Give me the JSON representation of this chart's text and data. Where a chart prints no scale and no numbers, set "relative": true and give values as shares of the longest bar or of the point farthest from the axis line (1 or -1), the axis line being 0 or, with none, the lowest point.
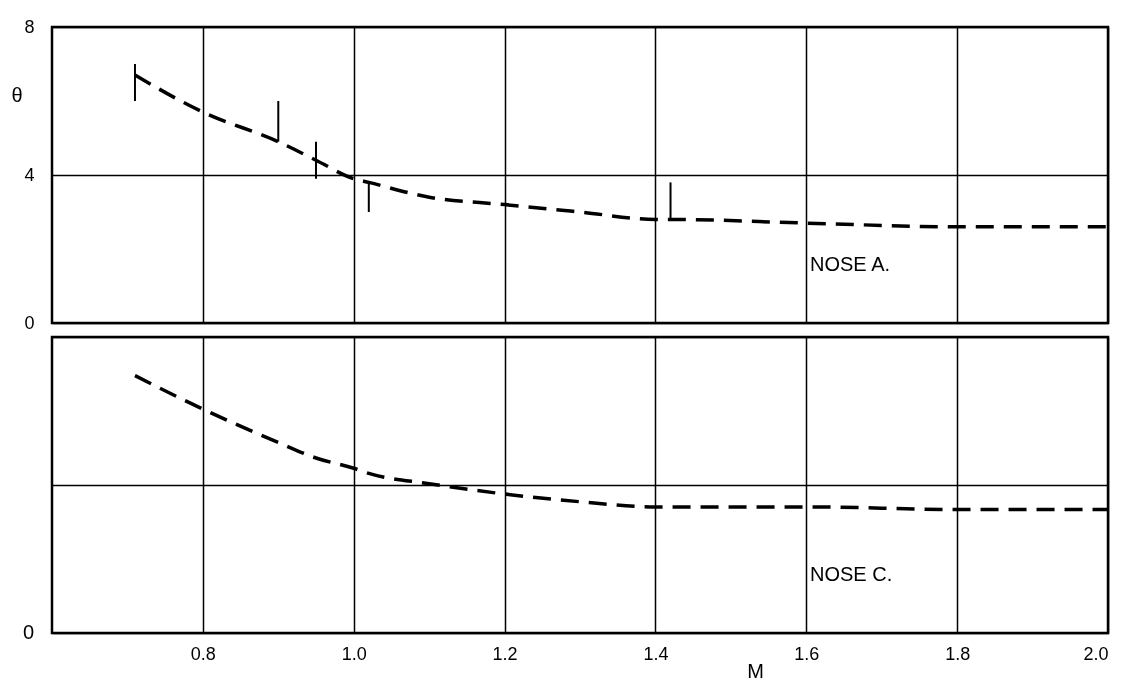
{
  "chart_data": [
    {
      "type": "line",
      "ylabel": "θ",
      "xlim": [
        0.6,
        2.0
      ],
      "xticks": [
        0.8,
        1.0,
        1.2,
        1.4,
        1.6,
        1.8,
        2.0
      ],
      "ylim": [
        0,
        8
      ],
      "yticks": [
        0,
        4,
        8
      ],
      "tick_labels": "y",
      "grid": true,
      "line_style": "dashed",
      "marker": "none",
      "annotations": [
        "NOSE A."
      ],
      "series": [
        {
          "color": "#000000",
          "x": [
            0.71,
            0.8,
            0.9,
            0.95,
            1.0,
            1.02,
            1.1,
            1.2,
            1.3,
            1.4,
            1.42,
            1.6,
            1.8,
            2.0
          ],
          "values": [
            6.7,
            5.7,
            4.9,
            4.4,
            3.9,
            3.8,
            3.4,
            3.2,
            3.0,
            2.8,
            2.8,
            2.7,
            2.6,
            2.6
          ],
          "errors": [
            [
              6.0,
              7.0
            ],
            null,
            [
              4.9,
              6.0
            ],
            [
              3.9,
              4.9
            ],
            null,
            [
              3.0,
              3.8
            ],
            null,
            null,
            null,
            null,
            [
              2.8,
              3.8
            ],
            null,
            null,
            [
              1.9,
              2.8
            ]
          ]
        }
      ]
    },
    {
      "type": "line",
      "relative": true,
      "xlabel": "M",
      "xlim": [
        0.6,
        2.0
      ],
      "xticks": [
        {
          "value": 0.8,
          "label": "0.8"
        },
        {
          "value": 1.0,
          "label": "1.0"
        },
        {
          "value": 1.2,
          "label": "1.2"
        },
        {
          "value": 1.4,
          "label": "1.4"
        },
        {
          "value": 1.6,
          "label": "1.6"
        },
        {
          "value": 1.8,
          "label": "1.8"
        },
        {
          "value": 2.0,
          "label": "2.0"
        }
      ],
      "grid": true,
      "line_style": "dashed",
      "marker": "none",
      "annotations": [
        "NOSE C.",
        "0"
      ],
      "series": [
        {
          "color": "#000000",
          "x": [
            0.71,
            0.8,
            0.9,
            0.95,
            1.0,
            1.02,
            1.1,
            1.2,
            1.3,
            1.4,
            1.42,
            1.6,
            1.8,
            2.0
          ],
          "values": [
            1,
            0.87,
            0.74,
            0.68,
            0.64,
            0.62,
            0.58,
            0.54,
            0.51,
            0.49,
            0.49,
            0.49,
            0.48,
            0.48
          ]
        }
      ]
    }
  ]
}
